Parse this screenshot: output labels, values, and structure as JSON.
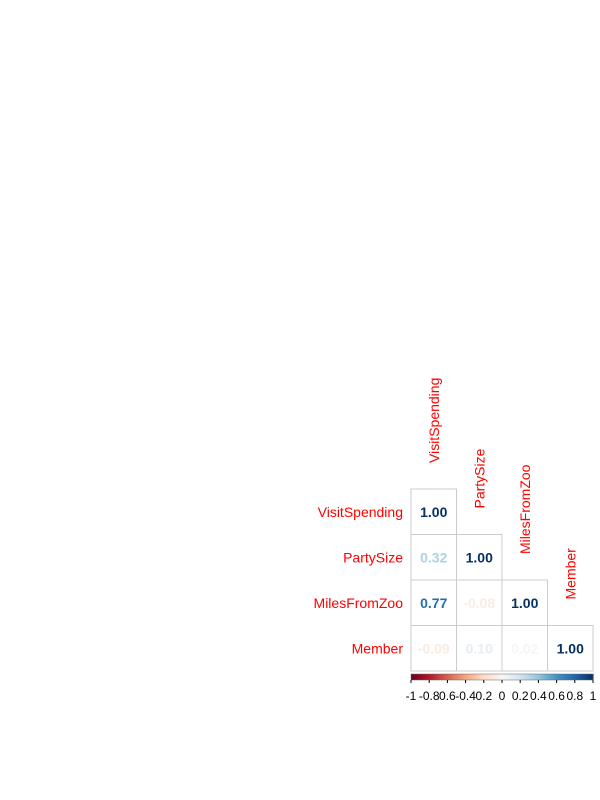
{
  "chart_data": {
    "type": "heatmap",
    "variables": [
      "VisitSpending",
      "PartySize",
      "MilesFromZoo",
      "Member"
    ],
    "matrix": [
      [
        1.0,
        null,
        null,
        null
      ],
      [
        0.32,
        1.0,
        null,
        null
      ],
      [
        0.77,
        -0.08,
        1.0,
        null
      ],
      [
        -0.09,
        0.1,
        0.02,
        1.0
      ]
    ],
    "cell_labels": [
      [
        "1.00",
        "",
        "",
        ""
      ],
      [
        "0.32",
        "1.00",
        "",
        ""
      ],
      [
        "0.77",
        "-0.08",
        "1.00",
        ""
      ],
      [
        "-0.09",
        "0.10",
        "0.02",
        "1.00"
      ]
    ],
    "layout": "lower-triangle",
    "color_scale": {
      "range": [
        -1,
        1
      ],
      "low_color": "#67001f",
      "mid_color": "#f7f7f7",
      "high_color": "#053061",
      "tick_labels": [
        "-1",
        "-0.8",
        "0.6",
        "-0.4",
        "0.2",
        "0",
        "0.2",
        "0.4",
        "0.6",
        "0.8",
        "1"
      ]
    },
    "label_color": "#ff0000",
    "grid": true,
    "legend": "bottom"
  }
}
